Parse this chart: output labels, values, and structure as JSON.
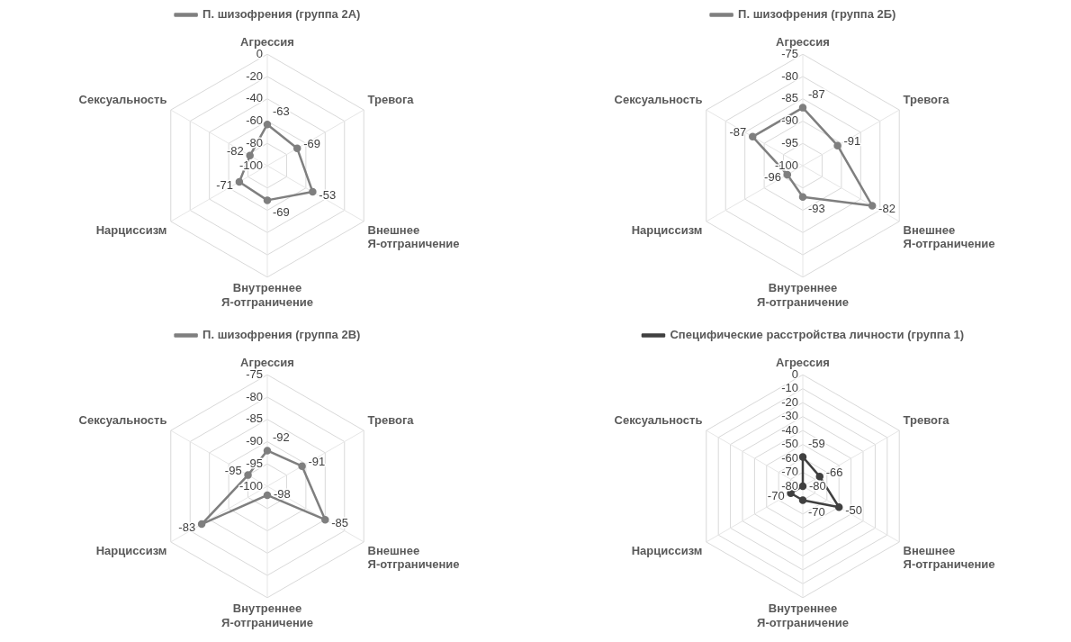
{
  "chart_data": [
    {
      "type": "radar",
      "categories": [
        "Агрессия",
        "Тревога",
        "Внешнее Я-отграничение",
        "Внутреннее Я-отграничение",
        "Нарциссизм",
        "Сексуальность"
      ],
      "series": [
        {
          "name": "П. шизофрения (группа 2А)",
          "color": "#7f7f7f",
          "values": [
            -63,
            -69,
            -53,
            -69,
            -71,
            -82
          ]
        }
      ],
      "ylim": [
        -100,
        0
      ],
      "yticks": [
        0,
        -20,
        -40,
        -60,
        -80,
        -100
      ],
      "grid": true,
      "legend": "top",
      "marker": "circle",
      "data_labels": true
    },
    {
      "type": "radar",
      "categories": [
        "Агрессия",
        "Тревога",
        "Внешнее Я-отграничение",
        "Внутреннее Я-отграничение",
        "Нарциссизм",
        "Сексуальность"
      ],
      "series": [
        {
          "name": "П. шизофрения (группа 2Б)",
          "color": "#7f7f7f",
          "values": [
            -87,
            -91,
            -82,
            -93,
            -96,
            -87
          ]
        }
      ],
      "ylim": [
        -100,
        -75
      ],
      "yticks": [
        -75,
        -80,
        -85,
        -90,
        -95,
        -100
      ],
      "grid": true,
      "legend": "top",
      "marker": "circle",
      "data_labels": true
    },
    {
      "type": "radar",
      "categories": [
        "Агрессия",
        "Тревога",
        "Внешнее Я-отграничение",
        "Внутреннее Я-отграничение",
        "Нарциссизм",
        "Сексуальность"
      ],
      "series": [
        {
          "name": "П. шизофрения (группа 2В)",
          "color": "#7f7f7f",
          "values": [
            -92,
            -91,
            -85,
            -98,
            -83,
            -95
          ]
        }
      ],
      "ylim": [
        -100,
        -75
      ],
      "yticks": [
        -75,
        -80,
        -85,
        -90,
        -95,
        -100
      ],
      "grid": true,
      "legend": "top",
      "marker": "circle",
      "data_labels": true
    },
    {
      "type": "radar",
      "categories": [
        "Агрессия",
        "Тревога",
        "Внешнее Я-отграничение",
        "Внутреннее Я-отграничение",
        "Нарциссизм",
        "Сексуальность"
      ],
      "series": [
        {
          "name": "Специфические расстройства личности (группа 1)",
          "color": "#404040",
          "values": [
            -59,
            -66,
            -50,
            -70,
            -70,
            -80
          ]
        }
      ],
      "ylim": [
        -80,
        0
      ],
      "yticks": [
        0,
        -10,
        -20,
        -30,
        -40,
        -50,
        -60,
        -70,
        -80
      ],
      "grid": true,
      "legend": "top",
      "marker": "circle",
      "data_labels": true
    }
  ]
}
